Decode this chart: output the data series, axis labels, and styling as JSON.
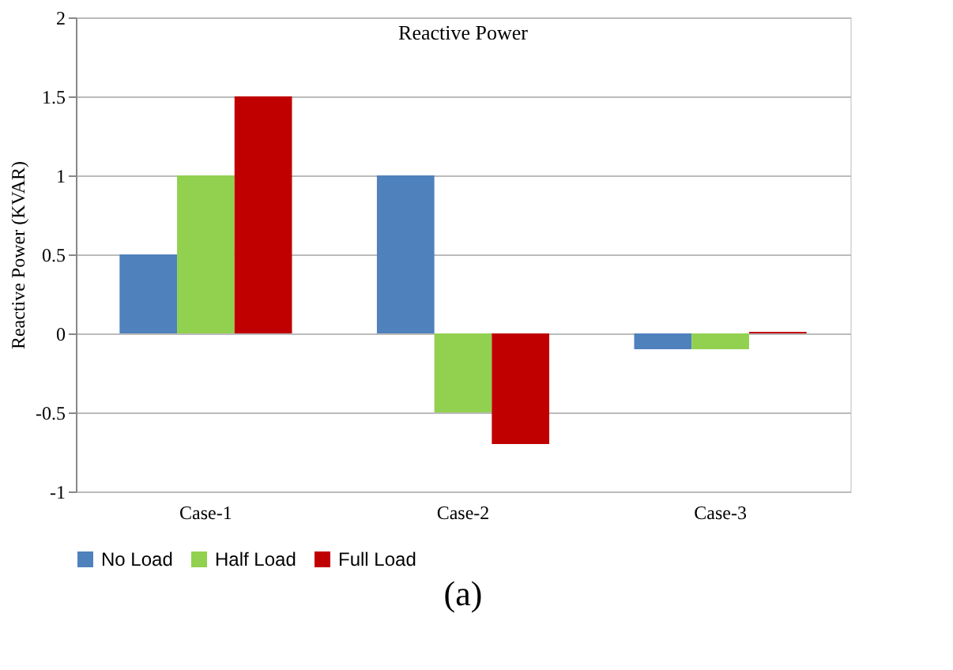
{
  "chart_data": {
    "type": "bar",
    "title": "Reactive Power",
    "ylabel": "Reactive Power (KVAR)",
    "categories": [
      "Case-1",
      "Case-2",
      "Case-3"
    ],
    "series": [
      {
        "name": "No Load",
        "color": "#4f81bd",
        "values": [
          0.5,
          1,
          -0.1
        ]
      },
      {
        "name": "Half Load",
        "color": "#92d050",
        "values": [
          1,
          -0.5,
          -0.1
        ]
      },
      {
        "name": "Full Load",
        "color": "#c00000",
        "values": [
          1.5,
          -0.7,
          0.01
        ]
      }
    ],
    "ylim": [
      -1,
      2
    ],
    "yticks": [
      -1,
      -0.5,
      0,
      0.5,
      1,
      1.5,
      2
    ],
    "grid": "y",
    "legend": "bottom",
    "annotations": [
      "(a)"
    ]
  }
}
